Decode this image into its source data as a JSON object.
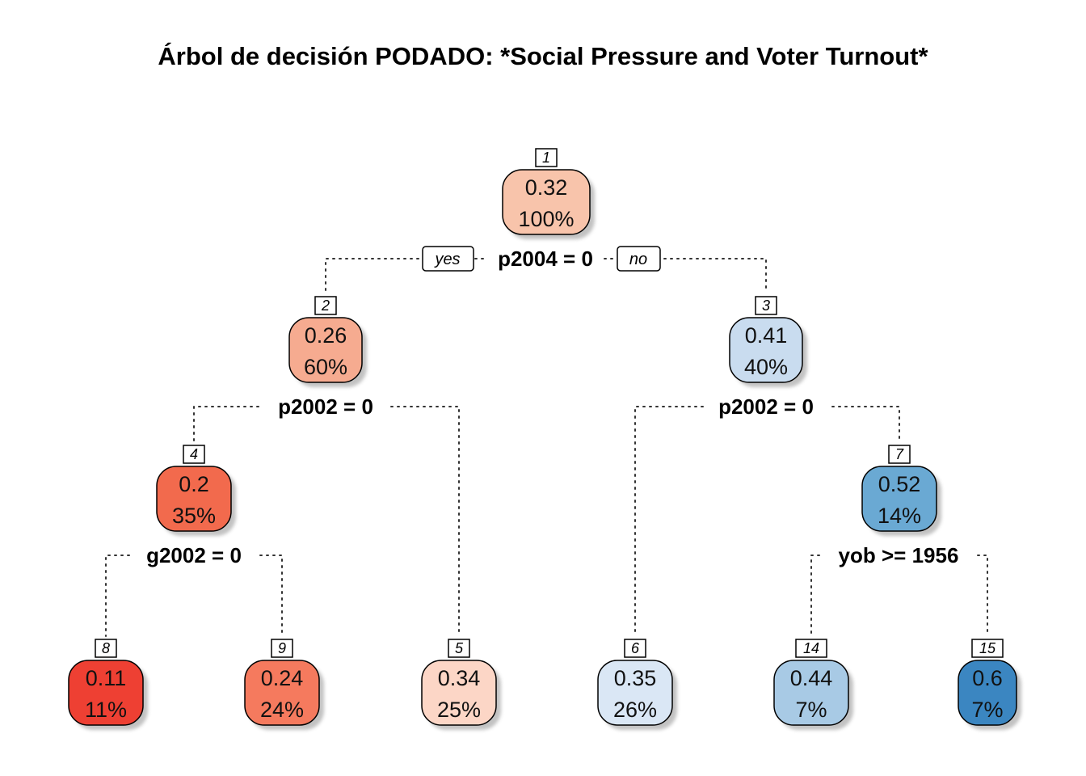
{
  "title": "Árbol de decisión PODADO: *Social Pressure and Voter Turnout*",
  "branch_labels": {
    "yes": "yes",
    "no": "no"
  },
  "nodes": [
    {
      "id": "1",
      "value": "0.32",
      "percent": "100%",
      "color": "#F8C4AB",
      "split": "p2004 = 0"
    },
    {
      "id": "2",
      "value": "0.26",
      "percent": "60%",
      "color": "#F6AB90",
      "split": "p2002 = 0"
    },
    {
      "id": "3",
      "value": "0.41",
      "percent": "40%",
      "color": "#C9DCEF",
      "split": "p2002 = 0"
    },
    {
      "id": "4",
      "value": "0.2",
      "percent": "35%",
      "color": "#F26A4D",
      "split": "g2002 = 0"
    },
    {
      "id": "7",
      "value": "0.52",
      "percent": "14%",
      "color": "#6AA9D3",
      "split": "yob >= 1956"
    },
    {
      "id": "8",
      "value": "0.11",
      "percent": "11%",
      "color": "#EE4033"
    },
    {
      "id": "9",
      "value": "0.24",
      "percent": "24%",
      "color": "#F57A5E"
    },
    {
      "id": "5",
      "value": "0.34",
      "percent": "25%",
      "color": "#FCD6C6"
    },
    {
      "id": "6",
      "value": "0.35",
      "percent": "26%",
      "color": "#DAE7F5"
    },
    {
      "id": "14",
      "value": "0.44",
      "percent": "7%",
      "color": "#A8CAE5"
    },
    {
      "id": "15",
      "value": "0.6",
      "percent": "7%",
      "color": "#3B86C1"
    }
  ]
}
